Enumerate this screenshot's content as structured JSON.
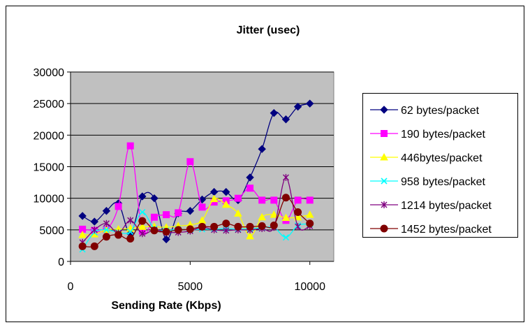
{
  "chart_data": {
    "type": "line",
    "title": "Jitter (usec)",
    "xlabel": "Sending Rate (Kbps)",
    "ylabel": "",
    "xlim": [
      0,
      11000
    ],
    "ylim": [
      0,
      30000
    ],
    "x_ticks": [
      0,
      5000,
      10000
    ],
    "x_tick_labels": [
      "0",
      "5000",
      "10000"
    ],
    "y_ticks": [
      0,
      5000,
      10000,
      15000,
      20000,
      25000,
      30000
    ],
    "y_tick_labels": [
      "0",
      "5000",
      "10000",
      "15000",
      "20000",
      "25000",
      "30000"
    ],
    "grid": "horizontal",
    "plot_background": "#c0c0c0",
    "legend_position": "right",
    "x": [
      500,
      1000,
      1500,
      2000,
      2500,
      3000,
      3500,
      4000,
      4500,
      5000,
      5500,
      6000,
      6500,
      7000,
      7500,
      8000,
      8500,
      9000,
      9500,
      10000
    ],
    "series": [
      {
        "name": "62 bytes/packet",
        "color": "#000080",
        "marker": "diamond",
        "values": [
          7200,
          6300,
          8000,
          9200,
          4400,
          10300,
          10000,
          3500,
          7600,
          8000,
          9800,
          11000,
          11000,
          9700,
          13300,
          17800,
          23500,
          22500,
          24500,
          25000
        ]
      },
      {
        "name": "190 bytes/packet",
        "color": "#ff00ff",
        "marker": "square",
        "values": [
          5100,
          4900,
          5000,
          8700,
          18300,
          4800,
          7000,
          7400,
          7700,
          15800,
          8600,
          9400,
          9600,
          10000,
          11600,
          9700,
          9700,
          6500,
          9700,
          9700
        ]
      },
      {
        "name": "446bytes/packet",
        "color": "#ffff00",
        "marker": "triangle",
        "values": [
          4200,
          4300,
          5000,
          5100,
          5200,
          5500,
          5500,
          5400,
          5600,
          5800,
          6500,
          9900,
          9000,
          7600,
          4000,
          7000,
          7400,
          6900,
          7000,
          7400
        ]
      },
      {
        "name": "958 bytes/packet",
        "color": "#00ffff",
        "marker": "x",
        "values": [
          1900,
          4600,
          5000,
          4600,
          4700,
          7800,
          5200,
          4900,
          5100,
          5000,
          5100,
          5100,
          5200,
          5100,
          5200,
          5300,
          5400,
          3800,
          5700,
          5900
        ]
      },
      {
        "name": "1214 bytes/packet",
        "color": "#800080",
        "marker": "star",
        "values": [
          3000,
          5000,
          6000,
          4500,
          6500,
          4400,
          5000,
          4600,
          4600,
          4800,
          5400,
          5000,
          4900,
          5000,
          5000,
          5200,
          5400,
          13300,
          5500,
          5600
        ]
      },
      {
        "name": "1452 bytes/packet",
        "color": "#800000",
        "marker": "circle",
        "values": [
          2400,
          2400,
          3900,
          4200,
          3600,
          6400,
          4900,
          4700,
          5000,
          5100,
          5500,
          5500,
          6000,
          5500,
          5500,
          5600,
          5700,
          10100,
          7800,
          6000
        ]
      }
    ]
  }
}
